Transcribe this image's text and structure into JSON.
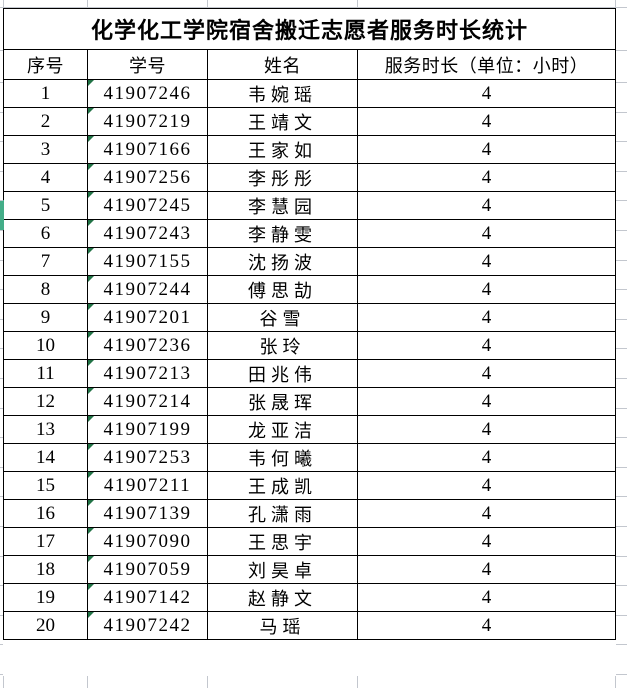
{
  "title": "化学化工学院宿舍搬迁志愿者服务时长统计",
  "table": {
    "headers": [
      "序号",
      "学号",
      "姓名",
      "服务时长（单位：小时）"
    ],
    "rows": [
      {
        "no": "1",
        "student_id": "41907246",
        "name": "韦婉瑶",
        "hours": "4"
      },
      {
        "no": "2",
        "student_id": "41907219",
        "name": "王靖文",
        "hours": "4"
      },
      {
        "no": "3",
        "student_id": "41907166",
        "name": "王家如",
        "hours": "4"
      },
      {
        "no": "4",
        "student_id": "41907256",
        "name": "李彤彤",
        "hours": "4"
      },
      {
        "no": "5",
        "student_id": "41907245",
        "name": "李慧园",
        "hours": "4"
      },
      {
        "no": "6",
        "student_id": "41907243",
        "name": "李静雯",
        "hours": "4"
      },
      {
        "no": "7",
        "student_id": "41907155",
        "name": "沈扬波",
        "hours": "4"
      },
      {
        "no": "8",
        "student_id": "41907244",
        "name": "傅思劼",
        "hours": "4"
      },
      {
        "no": "9",
        "student_id": "41907201",
        "name": "谷雪",
        "hours": "4"
      },
      {
        "no": "10",
        "student_id": "41907236",
        "name": "张玲",
        "hours": "4"
      },
      {
        "no": "11",
        "student_id": "41907213",
        "name": "田兆伟",
        "hours": "4"
      },
      {
        "no": "12",
        "student_id": "41907214",
        "name": "张晟珲",
        "hours": "4"
      },
      {
        "no": "13",
        "student_id": "41907199",
        "name": "龙亚洁",
        "hours": "4"
      },
      {
        "no": "14",
        "student_id": "41907253",
        "name": "韦何曦",
        "hours": "4"
      },
      {
        "no": "15",
        "student_id": "41907211",
        "name": "王成凯",
        "hours": "4"
      },
      {
        "no": "16",
        "student_id": "41907139",
        "name": "孔潇雨",
        "hours": "4"
      },
      {
        "no": "17",
        "student_id": "41907090",
        "name": "王思宇",
        "hours": "4"
      },
      {
        "no": "18",
        "student_id": "41907059",
        "name": "刘昊卓",
        "hours": "4"
      },
      {
        "no": "19",
        "student_id": "41907142",
        "name": "赵静文",
        "hours": "4"
      },
      {
        "no": "20",
        "student_id": "41907242",
        "name": "马瑶",
        "hours": "4"
      }
    ]
  },
  "colors": {
    "background": "#ffffff",
    "text": "#000000",
    "border": "#000000",
    "gridline": "#c3c7ce",
    "flag_green": "#217346",
    "selection_green": "#43ad88"
  }
}
